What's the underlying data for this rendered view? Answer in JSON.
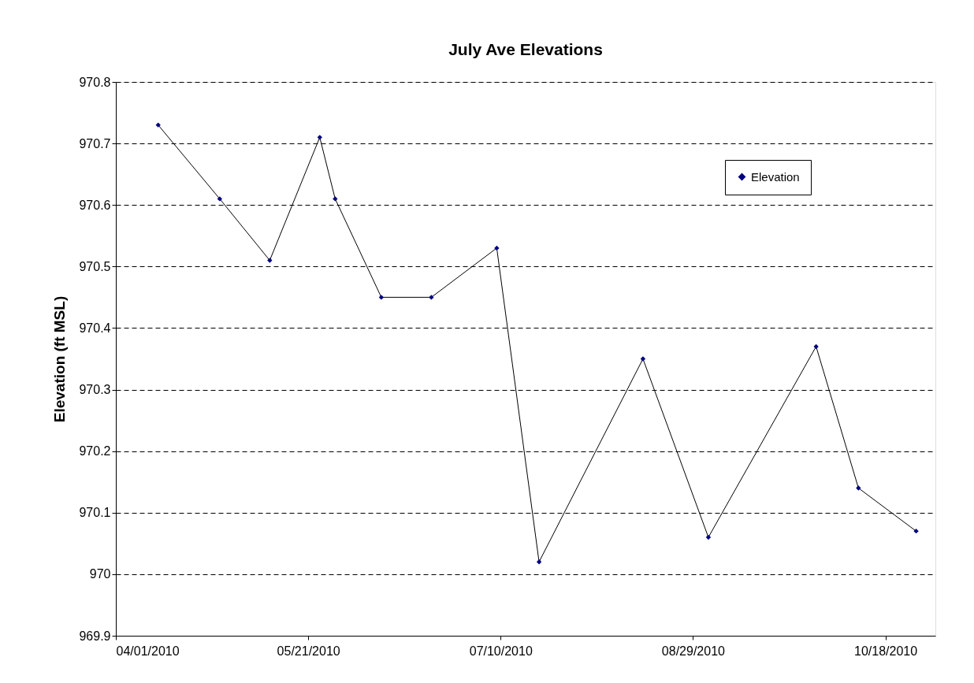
{
  "chart_data": {
    "type": "line",
    "title": "July Ave Elevations",
    "ylabel": "Elevation (ft MSL)",
    "x": [
      "2010-04-12",
      "2010-04-28",
      "2010-05-11",
      "2010-05-24",
      "2010-05-28",
      "2010-06-09",
      "2010-06-22",
      "2010-07-09",
      "2010-07-20",
      "2010-08-16",
      "2010-09-02",
      "2010-09-30",
      "2010-10-11",
      "2010-10-26"
    ],
    "series": [
      {
        "name": "Elevation",
        "color": "#000080",
        "values": [
          970.73,
          970.61,
          970.51,
          970.71,
          970.61,
          970.45,
          970.45,
          970.53,
          970.02,
          970.35,
          970.06,
          970.37,
          970.14,
          970.07
        ]
      }
    ],
    "xlim": [
      "2010-04-01",
      "2010-10-31"
    ],
    "xticks": [
      {
        "value": "2010-04-01",
        "label": "04/01/2010"
      },
      {
        "value": "2010-05-21",
        "label": "05/21/2010"
      },
      {
        "value": "2010-07-10",
        "label": "07/10/2010"
      },
      {
        "value": "2010-08-29",
        "label": "08/29/2010"
      },
      {
        "value": "2010-10-18",
        "label": "10/18/2010"
      }
    ],
    "ylim": [
      969.9,
      970.8
    ],
    "yticks": [
      969.9,
      970,
      970.1,
      970.2,
      970.3,
      970.4,
      970.5,
      970.6,
      970.7,
      970.8
    ],
    "grid": "y",
    "legend": "top right",
    "marker": "diamond",
    "line_style": "solid"
  }
}
